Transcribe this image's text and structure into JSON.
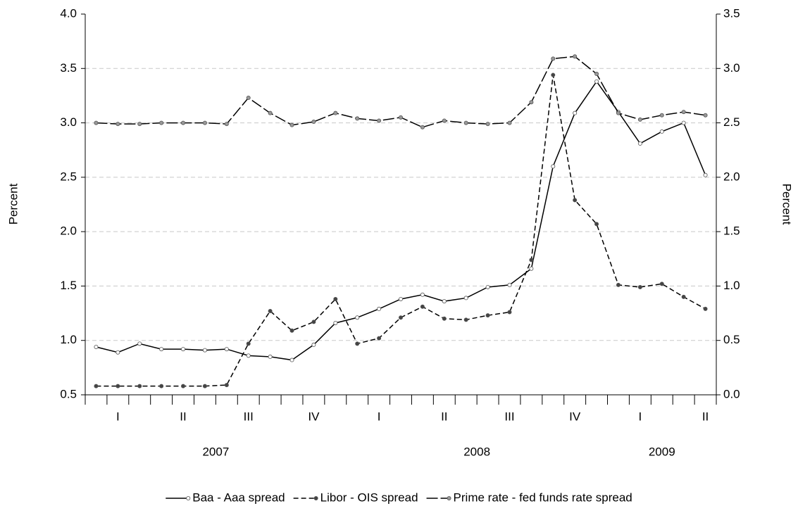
{
  "chart_data": {
    "type": "line",
    "ylabel": "Percent",
    "y2label": "Percent",
    "ylim": [
      0.5,
      4.0
    ],
    "yticks": [
      0.5,
      {
        "value": 1.0,
        "label": "1.0"
      },
      1.5,
      {
        "value": 2.0,
        "label": "2.0"
      },
      2.5,
      {
        "value": 3.0,
        "label": "3.0"
      },
      3.5,
      {
        "value": 4.0,
        "label": "4.0"
      }
    ],
    "y2lim": [
      0.0,
      3.5
    ],
    "y2ticks": [
      {
        "value": 0.0,
        "label": "0.0"
      },
      0.5,
      {
        "value": 1.0,
        "label": "1.0"
      },
      1.5,
      {
        "value": 2.0,
        "label": "2.0"
      },
      2.5,
      {
        "value": 3.0,
        "label": "3.0"
      },
      3.5
    ],
    "grid": true,
    "legend": "bottom",
    "categories": [
      null,
      "I",
      null,
      null,
      "II",
      null,
      null,
      "III",
      null,
      null,
      "IV",
      null,
      null,
      "I",
      null,
      null,
      "II",
      null,
      null,
      "III",
      null,
      null,
      "IV",
      null,
      null,
      "I",
      null,
      null,
      "II"
    ],
    "years": [
      "2007",
      "2008",
      "2009"
    ],
    "series": [
      {
        "name": "Baa - Aaa spread",
        "color": "#000000",
        "line_style": "solid",
        "marker_color": "#ffffff",
        "values": [
          0.94,
          0.89,
          0.97,
          0.92,
          0.92,
          0.91,
          0.92,
          0.86,
          0.85,
          0.82,
          0.96,
          1.16,
          1.21,
          1.29,
          1.38,
          1.42,
          1.36,
          1.39,
          1.49,
          1.51,
          1.66,
          2.6,
          3.09,
          3.38,
          3.1,
          2.81,
          2.92,
          3.0,
          2.52
        ]
      },
      {
        "name": "Libor - OIS spread",
        "color": "#000000",
        "line_style": "dashed",
        "marker_color": "#444444",
        "axis": "y2",
        "values": [
          0.08,
          0.08,
          0.08,
          0.08,
          0.08,
          0.08,
          0.09,
          0.47,
          0.77,
          0.59,
          0.67,
          0.88,
          0.47,
          0.52,
          0.71,
          0.81,
          0.7,
          0.69,
          0.73,
          0.76,
          1.24,
          2.94,
          1.79,
          1.57,
          1.01,
          0.99,
          1.02,
          0.9,
          0.79
        ]
      },
      {
        "name": "Prime rate - fed funds rate spread",
        "color": "#000000",
        "line_style": "long-dashed",
        "marker_color": "#999999",
        "values": [
          3.0,
          2.99,
          2.99,
          3.0,
          3.0,
          3.0,
          2.99,
          3.23,
          3.09,
          2.98,
          3.01,
          3.09,
          3.04,
          3.02,
          3.05,
          2.96,
          3.02,
          3.0,
          2.99,
          3.0,
          3.19,
          3.59,
          3.61,
          3.45,
          3.09,
          3.03,
          3.07,
          3.1,
          3.07
        ]
      }
    ]
  }
}
